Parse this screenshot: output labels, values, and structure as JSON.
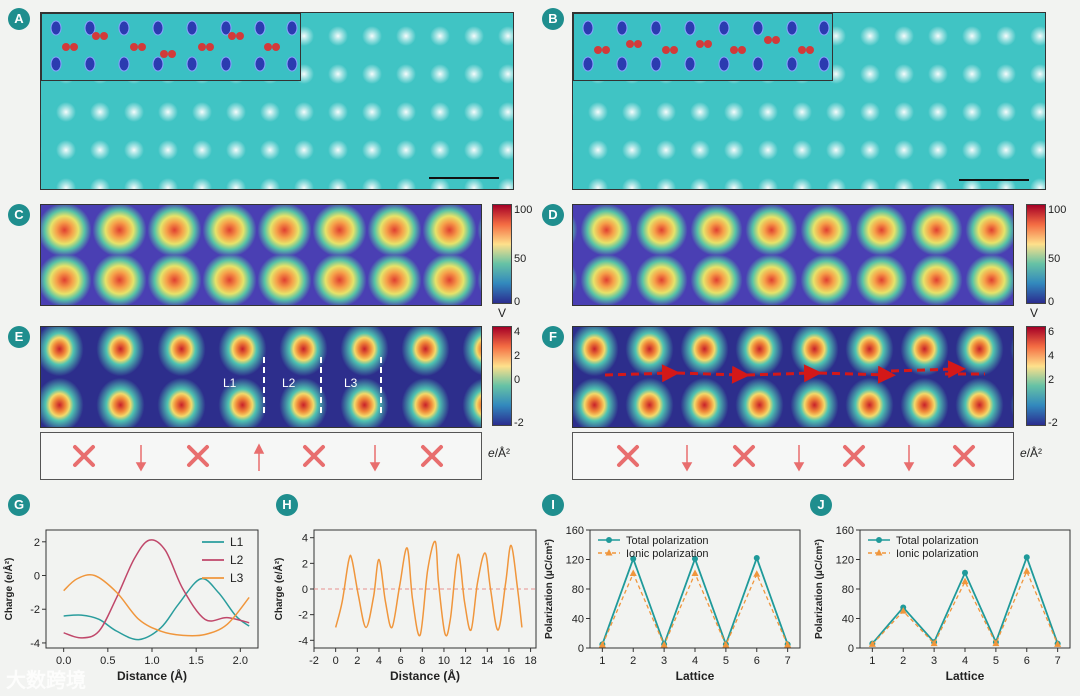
{
  "figure": {
    "panels": {
      "a": {
        "label": "A"
      },
      "b": {
        "label": "B"
      },
      "c": {
        "label": "C"
      },
      "d": {
        "label": "D"
      },
      "e": {
        "label": "E"
      },
      "f": {
        "label": "F"
      },
      "g": {
        "label": "G"
      },
      "h": {
        "label": "H"
      },
      "i": {
        "label": "I"
      },
      "j": {
        "label": "J"
      }
    },
    "colorbar_potential": {
      "ticks": [
        "100",
        "50",
        "0"
      ],
      "unit": "V"
    },
    "colorbar_charge_e": {
      "ticks": [
        "4",
        "2",
        "0",
        "-2"
      ]
    },
    "colorbar_charge_f": {
      "ticks": [
        "6",
        "4",
        "2",
        "-2"
      ]
    },
    "charge_unit": {
      "numerator": "e",
      "denominator": "/Å²"
    },
    "line_labels": [
      "L1",
      "L2",
      "L3"
    ],
    "watermark": "大数跨境",
    "colors": {
      "teal": "#1f8e8e",
      "l1": "#2a9d9d",
      "l2": "#c0476a",
      "l3": "#f0963c",
      "arrow": "#e86e6e"
    }
  },
  "chart_data": [
    {
      "panel": "G",
      "type": "line",
      "xlabel": "Distance (Å)",
      "ylabel": "Charge (e/Å²)",
      "xlim": [
        -0.2,
        2.2
      ],
      "ylim": [
        -4.3,
        2.7
      ],
      "xticks": [
        "0.0",
        "0.5",
        "1.0",
        "1.5",
        "2.0"
      ],
      "yticks": [
        "2",
        "0",
        "-2",
        "-4"
      ],
      "legend": "top-right",
      "series": [
        {
          "name": "L1",
          "color": "#2a9d9d",
          "x": [
            0,
            0.2,
            0.4,
            0.6,
            0.85,
            1.1,
            1.3,
            1.55,
            1.75,
            1.95,
            2.1
          ],
          "y": [
            -2.4,
            -2.35,
            -2.6,
            -3.3,
            -3.8,
            -3.1,
            -1.7,
            -0.2,
            -1.0,
            -2.4,
            -3.0
          ]
        },
        {
          "name": "L2",
          "color": "#c0476a",
          "x": [
            0,
            0.2,
            0.4,
            0.6,
            0.8,
            0.97,
            1.15,
            1.35,
            1.6,
            1.85,
            2.1
          ],
          "y": [
            -3.4,
            -3.7,
            -3.3,
            -1.3,
            1.0,
            2.1,
            1.5,
            -0.8,
            -2.6,
            -2.5,
            -2.8
          ]
        },
        {
          "name": "L3",
          "color": "#f0963c",
          "x": [
            0,
            0.15,
            0.35,
            0.6,
            0.85,
            1.1,
            1.35,
            1.6,
            1.85,
            2.1
          ],
          "y": [
            -0.9,
            -0.2,
            0.0,
            -1.0,
            -2.6,
            -3.3,
            -3.55,
            -3.5,
            -2.9,
            -1.3
          ]
        }
      ]
    },
    {
      "panel": "H",
      "type": "line",
      "xlabel": "Distance (Å)",
      "ylabel": "Charge (e/Å²)",
      "xlim": [
        -2,
        18.5
      ],
      "ylim": [
        -4.6,
        4.6
      ],
      "xticks": [
        "-2",
        "0",
        "2",
        "4",
        "6",
        "8",
        "10",
        "12",
        "14",
        "16",
        "18"
      ],
      "yticks": [
        "4",
        "2",
        "0",
        "-2",
        "-4"
      ],
      "reference_line": 0,
      "series": [
        {
          "name": "charge",
          "color": "#f0963c",
          "x": [
            0,
            0.6,
            1.2,
            1.5,
            2.1,
            2.8,
            3.5,
            4.0,
            4.6,
            5.2,
            5.9,
            6.6,
            7.1,
            7.8,
            8.5,
            9.2,
            9.5,
            10.1,
            10.6,
            11.3,
            11.9,
            12.5,
            13.1,
            13.8,
            14.3,
            15.0,
            15.7,
            16.2,
            16.8,
            17.2
          ],
          "y": [
            -3.0,
            -1.0,
            2.2,
            2.3,
            -0.5,
            -3.0,
            -0.6,
            2.3,
            -1.0,
            -3.0,
            0.2,
            3.2,
            -0.8,
            -3.6,
            1.5,
            3.7,
            0.5,
            -3.5,
            -2.3,
            2.7,
            -1.0,
            -3.2,
            0.5,
            2.8,
            0.0,
            -3.2,
            0.5,
            3.4,
            0.0,
            -3.0
          ]
        }
      ]
    },
    {
      "panel": "I",
      "type": "line",
      "xlabel": "Lattice",
      "ylabel": "Polarization (μC/cm²)",
      "xlim": [
        0.6,
        7.4
      ],
      "ylim": [
        0,
        160
      ],
      "xticks": [
        "1",
        "2",
        "3",
        "4",
        "5",
        "6",
        "7"
      ],
      "yticks": [
        "0",
        "40",
        "80",
        "120",
        "160"
      ],
      "legend": "top",
      "x": [
        1,
        2,
        3,
        4,
        5,
        6,
        7
      ],
      "series": [
        {
          "name": "Total polarization",
          "color": "#1f9a9a",
          "values": [
            5,
            121,
            5,
            121,
            5,
            122,
            5
          ]
        },
        {
          "name": "Ionic polarization",
          "color": "#f0963c",
          "values": [
            4,
            101,
            4,
            101,
            4,
            100,
            4
          ]
        }
      ]
    },
    {
      "panel": "J",
      "type": "line",
      "xlabel": "Lattice",
      "ylabel": "Polarization (μC/cm²)",
      "xlim": [
        0.6,
        7.4
      ],
      "ylim": [
        0,
        160
      ],
      "xticks": [
        "1",
        "2",
        "3",
        "4",
        "5",
        "6",
        "7"
      ],
      "yticks": [
        "0",
        "40",
        "80",
        "120",
        "160"
      ],
      "legend": "top",
      "x": [
        1,
        2,
        3,
        4,
        5,
        6,
        7
      ],
      "series": [
        {
          "name": "Total polarization",
          "color": "#1f9a9a",
          "values": [
            6,
            55,
            8,
            102,
            8,
            123,
            6
          ]
        },
        {
          "name": "Ionic polarization",
          "color": "#f0963c",
          "values": [
            5,
            50,
            6,
            90,
            6,
            104,
            5
          ]
        }
      ]
    }
  ]
}
